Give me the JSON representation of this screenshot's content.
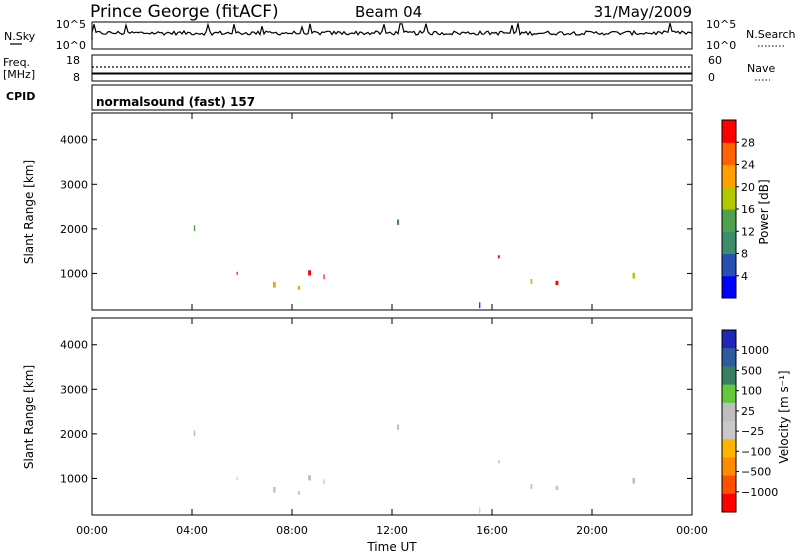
{
  "header": {
    "station": "Prince George (fitACF)",
    "beam": "Beam 04",
    "date": "31/May/2009"
  },
  "noise_panel": {
    "left_label": "N.Sky",
    "right_label": "N.Search",
    "left_ticks": [
      "10^5",
      "10^0"
    ],
    "right_ticks": [
      "10^5",
      "10^0"
    ]
  },
  "freq_panel": {
    "left_label_line1": "Freq.",
    "left_label_line2": "[MHz]",
    "right_label": "Nave",
    "left_ticks": [
      "18",
      "8"
    ],
    "right_ticks": [
      "60",
      "0"
    ]
  },
  "cpid_panel": {
    "label": "CPID",
    "program": "normalsound (fast) 157"
  },
  "colors": {
    "power_scale": [
      "#0000ff",
      "#2850b4",
      "#3c8c6e",
      "#50a050",
      "#b4c800",
      "#ffa000",
      "#ff6400",
      "#ff0000"
    ],
    "velocity_scale": [
      "#1e28b4",
      "#2e5aa0",
      "#3a8060",
      "#64c83c",
      "#bebebe",
      "#c8c8c8",
      "#ffb400",
      "#ff8c00",
      "#ff5000",
      "#ff0000"
    ]
  },
  "chart_data": [
    {
      "type": "heatmap",
      "panel": "power",
      "ylabel": "Slant Range [km]",
      "ylim": [
        180,
        4600
      ],
      "yticks": [
        1000,
        2000,
        3000,
        4000
      ],
      "xlim": [
        0,
        24
      ],
      "colorbar": {
        "label": "Power [dB]",
        "ticks": [
          4,
          8,
          12,
          16,
          20,
          24,
          28
        ],
        "range": [
          0,
          32
        ]
      }
    },
    {
      "type": "heatmap",
      "panel": "velocity",
      "ylabel": "Slant Range [km]",
      "xlabel": "Time UT",
      "ylim": [
        180,
        4600
      ],
      "yticks": [
        1000,
        2000,
        3000,
        4000
      ],
      "xlim": [
        0,
        24
      ],
      "xtick_labels": [
        "00:00",
        "04:00",
        "08:00",
        "12:00",
        "16:00",
        "20:00",
        "00:00"
      ],
      "xtick_values": [
        0,
        4,
        8,
        12,
        16,
        20,
        24
      ],
      "colorbar": {
        "label": "Velocity [m s⁻¹]",
        "ticks": [
          "1000",
          "500",
          "100",
          "25",
          "−25",
          "−100",
          "−500",
          "−1000"
        ]
      }
    }
  ]
}
